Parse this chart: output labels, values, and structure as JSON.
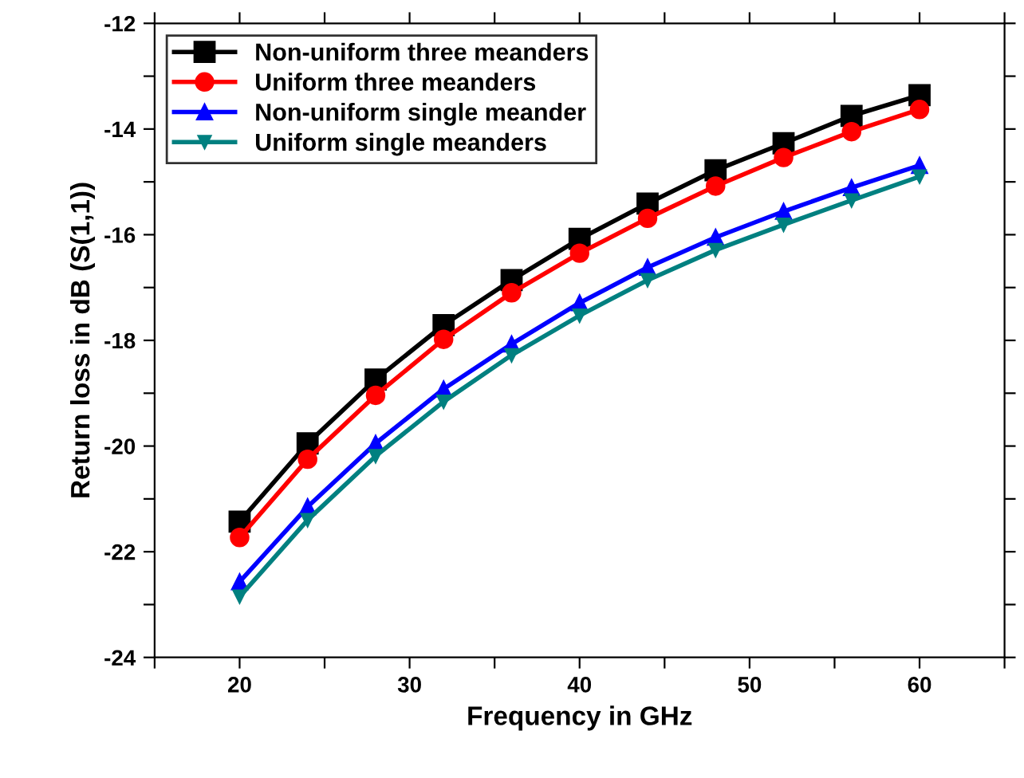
{
  "chart_data": {
    "type": "line",
    "xlabel": "Frequency in GHz",
    "ylabel": "Return loss in dB (S(1,1))",
    "x": [
      20,
      24,
      28,
      32,
      36,
      40,
      44,
      48,
      52,
      56,
      60
    ],
    "series": [
      {
        "name": "Non-uniform three meanders",
        "color": "#000000",
        "marker": "square",
        "values": [
          -21.43,
          -19.95,
          -18.74,
          -17.71,
          -16.86,
          -16.08,
          -15.41,
          -14.78,
          -14.27,
          -13.75,
          -13.36
        ]
      },
      {
        "name": "Uniform three meanders",
        "color": "#ff0000",
        "marker": "circle",
        "values": [
          -21.73,
          -20.25,
          -19.04,
          -17.98,
          -17.1,
          -16.35,
          -15.69,
          -15.08,
          -14.54,
          -14.05,
          -13.63
        ]
      },
      {
        "name": "Non-uniform single meander",
        "color": "#0000ff",
        "marker": "triangle",
        "values": [
          -22.57,
          -21.15,
          -19.95,
          -18.92,
          -18.07,
          -17.29,
          -16.62,
          -16.05,
          -15.56,
          -15.11,
          -14.69
        ]
      },
      {
        "name": "Uniform single meanders",
        "color": "#008080",
        "marker": "triangle_down",
        "values": [
          -22.85,
          -21.4,
          -20.19,
          -19.16,
          -18.28,
          -17.53,
          -16.86,
          -16.29,
          -15.81,
          -15.35,
          -14.9
        ]
      }
    ],
    "xlim": [
      15,
      65
    ],
    "ylim": [
      -24,
      -12
    ],
    "xticks": [
      {
        "value": 15,
        "label": null
      },
      20,
      {
        "value": 25,
        "label": null
      },
      30,
      {
        "value": 35,
        "label": null
      },
      40,
      {
        "value": 45,
        "label": null
      },
      50,
      {
        "value": 55,
        "label": null
      },
      60,
      {
        "value": 65,
        "label": null
      }
    ],
    "yticks": [
      -24,
      {
        "value": -23,
        "label": null
      },
      -22,
      {
        "value": -21,
        "label": null
      },
      -20,
      {
        "value": -19,
        "label": null
      },
      -18,
      {
        "value": -17,
        "label": null
      },
      -16,
      {
        "value": -15,
        "label": null
      },
      -14,
      {
        "value": -13,
        "label": null
      },
      -12
    ],
    "legend": "top left",
    "grid": false,
    "line_style": "solid"
  }
}
